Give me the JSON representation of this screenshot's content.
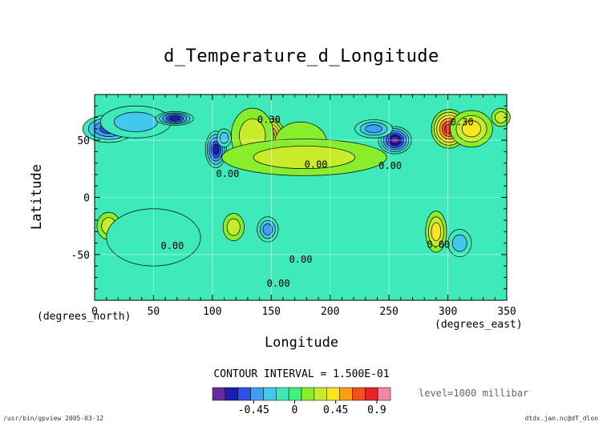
{
  "header": {
    "title": "d_Temperature_d_Longitude"
  },
  "axes": {
    "xlabel": "Longitude",
    "ylabel": "Latitude",
    "x_unit": "(degrees_east)",
    "y_unit": "(degrees_north)"
  },
  "footer": {
    "contour_interval": "CONTOUR INTERVAL = 1.500E-01",
    "level": "level=1000 millibar",
    "left": "/usr/bin/gpview  2005-03-12",
    "right": "dtdx.jan.nc@dT_dlon"
  },
  "colors": {
    "levels": [
      "#6a2aa0",
      "#1c1cb4",
      "#2e50e6",
      "#3d9ff2",
      "#41c8ec",
      "#3eeaba",
      "#44f07c",
      "#88ee2c",
      "#c8ec2c",
      "#f8e620",
      "#f8a014",
      "#f0521c",
      "#e8222a",
      "#f08aa2"
    ],
    "background": "#3eeaba",
    "grid": "#ffffff",
    "contour": "#000000"
  },
  "chart_data": {
    "type": "heatmap",
    "title": "d_Temperature_d_Longitude",
    "xlabel": "Longitude",
    "ylabel": "Latitude",
    "xlim": [
      0,
      350
    ],
    "ylim": [
      -90,
      90
    ],
    "x_ticks": [
      0,
      50,
      100,
      150,
      200,
      250,
      300,
      350
    ],
    "y_ticks": [
      -50,
      0,
      50
    ],
    "grid": true,
    "contour_interval": 0.15,
    "colorbar": {
      "tick_values": [
        -0.45,
        0,
        0.45,
        0.9
      ],
      "tick_labels": [
        "-0.45",
        "0",
        "0.45",
        "0.9"
      ],
      "range": [
        -0.9,
        1.05
      ]
    },
    "contour_labels": [
      {
        "x": 148,
        "y": 65,
        "text": "0.30"
      },
      {
        "x": 312,
        "y": 63,
        "text": "0.30"
      },
      {
        "x": 188,
        "y": 26,
        "text": "0.00"
      },
      {
        "x": 251,
        "y": 25,
        "text": "0.00"
      },
      {
        "x": 113,
        "y": 18,
        "text": "0.00"
      },
      {
        "x": 66,
        "y": -45,
        "text": "0.00"
      },
      {
        "x": 175,
        "y": -57,
        "text": "0.00"
      },
      {
        "x": 156,
        "y": -78,
        "text": "0.00"
      },
      {
        "x": 292,
        "y": -44,
        "text": "0.00"
      }
    ],
    "features": [
      {
        "lon": 12,
        "lat": 60,
        "value": -0.55,
        "sx": 22,
        "sy": 12
      },
      {
        "lon": 35,
        "lat": 66,
        "value": -0.3,
        "sx": 30,
        "sy": 14
      },
      {
        "lon": 68,
        "lat": 69,
        "value": -0.7,
        "sx": 16,
        "sy": 6
      },
      {
        "lon": 103,
        "lat": 42,
        "value": -0.7,
        "sx": 9,
        "sy": 16
      },
      {
        "lon": 110,
        "lat": 52,
        "value": -0.35,
        "sx": 6,
        "sy": 8
      },
      {
        "lon": 149,
        "lat": 55,
        "value": 0.75,
        "sx": 12,
        "sy": 14
      },
      {
        "lon": 134,
        "lat": 54,
        "value": 0.3,
        "sx": 18,
        "sy": 24
      },
      {
        "lon": 175,
        "lat": 48,
        "value": 0.2,
        "sx": 22,
        "sy": 18
      },
      {
        "lon": 255,
        "lat": 50,
        "value": -0.85,
        "sx": 14,
        "sy": 12
      },
      {
        "lon": 237,
        "lat": 60,
        "value": -0.45,
        "sx": 16,
        "sy": 8
      },
      {
        "lon": 301,
        "lat": 60,
        "value": 0.85,
        "sx": 15,
        "sy": 17
      },
      {
        "lon": 320,
        "lat": 60,
        "value": 0.4,
        "sx": 18,
        "sy": 16
      },
      {
        "lon": 345,
        "lat": 70,
        "value": 0.35,
        "sx": 8,
        "sy": 8
      },
      {
        "lon": 12,
        "lat": -25,
        "value": 0.3,
        "sx": 10,
        "sy": 12
      },
      {
        "lon": 118,
        "lat": -26,
        "value": 0.35,
        "sx": 9,
        "sy": 12
      },
      {
        "lon": 147,
        "lat": -28,
        "value": -0.4,
        "sx": 9,
        "sy": 11
      },
      {
        "lon": 290,
        "lat": -30,
        "value": 0.4,
        "sx": 9,
        "sy": 18
      },
      {
        "lon": 310,
        "lat": -40,
        "value": -0.25,
        "sx": 10,
        "sy": 12
      },
      {
        "lon": 178,
        "lat": 35,
        "value": 0.25,
        "sx": 70,
        "sy": 16
      },
      {
        "lon": 50,
        "lat": -35,
        "value": -0.05,
        "sx": 40,
        "sy": 25
      }
    ]
  }
}
